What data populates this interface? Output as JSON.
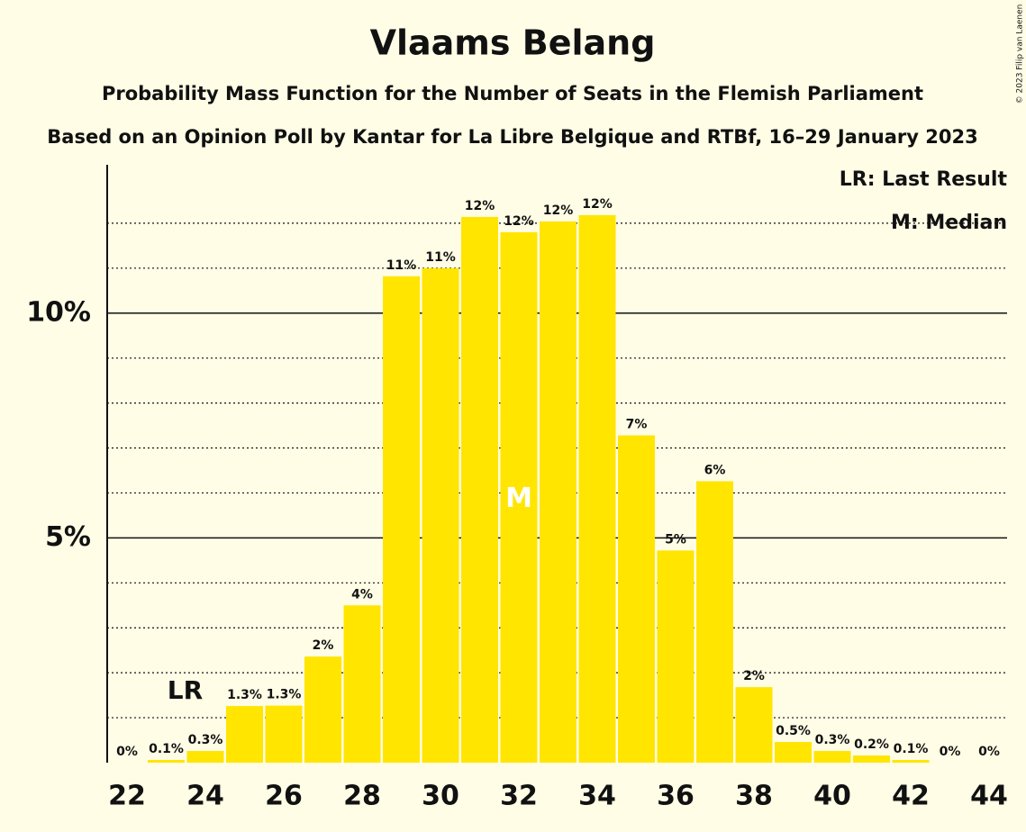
{
  "chart_data": {
    "type": "bar",
    "title": "Vlaams Belang",
    "subtitle": "Probability Mass Function for the Number of Seats in the Flemish Parliament",
    "subtitle2": "Based on an Opinion Poll by Kantar for La Libre Belgique and RTBf, 16–29 January 2023",
    "copyright": "© 2023 Filip van Laenen",
    "categories": [
      "22",
      null,
      "24",
      null,
      "26",
      null,
      "28",
      null,
      "30",
      null,
      "32",
      null,
      "34",
      null,
      "36",
      null,
      "38",
      null,
      "40",
      null,
      "42",
      null,
      "44"
    ],
    "values": [
      0,
      0.06,
      0.26,
      1.26,
      1.27,
      2.36,
      3.5,
      10.82,
      11.0,
      12.14,
      11.8,
      12.04,
      12.18,
      7.28,
      4.72,
      6.26,
      1.68,
      0.46,
      0.26,
      0.16,
      0.06,
      0,
      0
    ],
    "value_labels": [
      "0%",
      "0.1%",
      "0.3%",
      "1.3%",
      "1.3%",
      "2%",
      "4%",
      "11%",
      "11%",
      "12%",
      "12%",
      "12%",
      "12%",
      "7%",
      "5%",
      "6%",
      "2%",
      "0.5%",
      "0.3%",
      "0.2%",
      "0.1%",
      "0%",
      "0%"
    ],
    "color": "#ffe500",
    "ylim": [
      0,
      13.3
    ],
    "yticks": [
      {
        "value": 5,
        "label": "5%"
      },
      {
        "value": 10,
        "label": "10%"
      }
    ],
    "minor_yticks": [
      1,
      2,
      3,
      4,
      6,
      7,
      8,
      9,
      11,
      12
    ],
    "grid": true,
    "annotations": [
      {
        "text": "LR",
        "index": 1
      },
      {
        "text": "M",
        "index": 10
      }
    ],
    "legend": [
      "LR: Last Result",
      "M: Median"
    ],
    "legend_position": "top-right"
  }
}
